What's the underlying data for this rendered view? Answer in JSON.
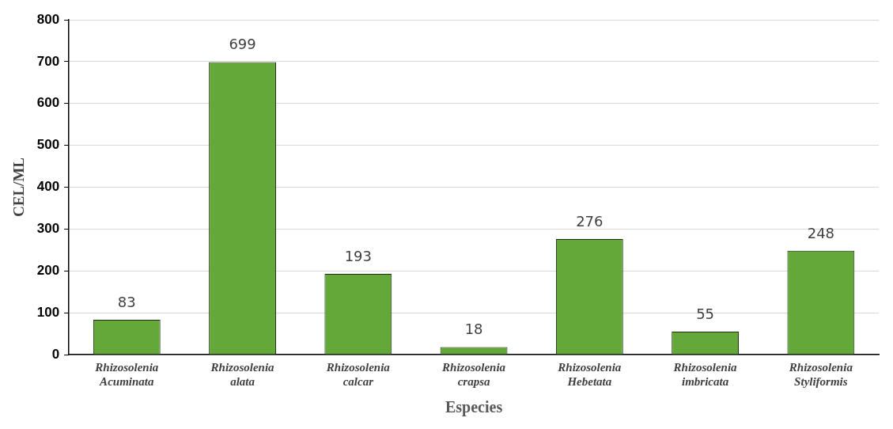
{
  "chart_data": {
    "type": "bar",
    "xlabel": "Especies",
    "ylabel": "CEL/ML",
    "categories": [
      "Rhizosolenia Acuminata",
      "Rhizosolenia alata",
      "Rhizosolenia calcar",
      "Rhizosolenia crapsa",
      "Rhizosolenia Hebetata",
      "Rhizosolenia imbricata",
      "Rhizosolenia Styliformis"
    ],
    "values": [
      83,
      699,
      193,
      18,
      276,
      55,
      248
    ],
    "color": "#65a83a",
    "ylim": [
      0,
      800
    ],
    "yticks": [
      0,
      100,
      200,
      300,
      400,
      500,
      600,
      700,
      800
    ],
    "grid": "y",
    "data_labels": true,
    "legend": false
  }
}
